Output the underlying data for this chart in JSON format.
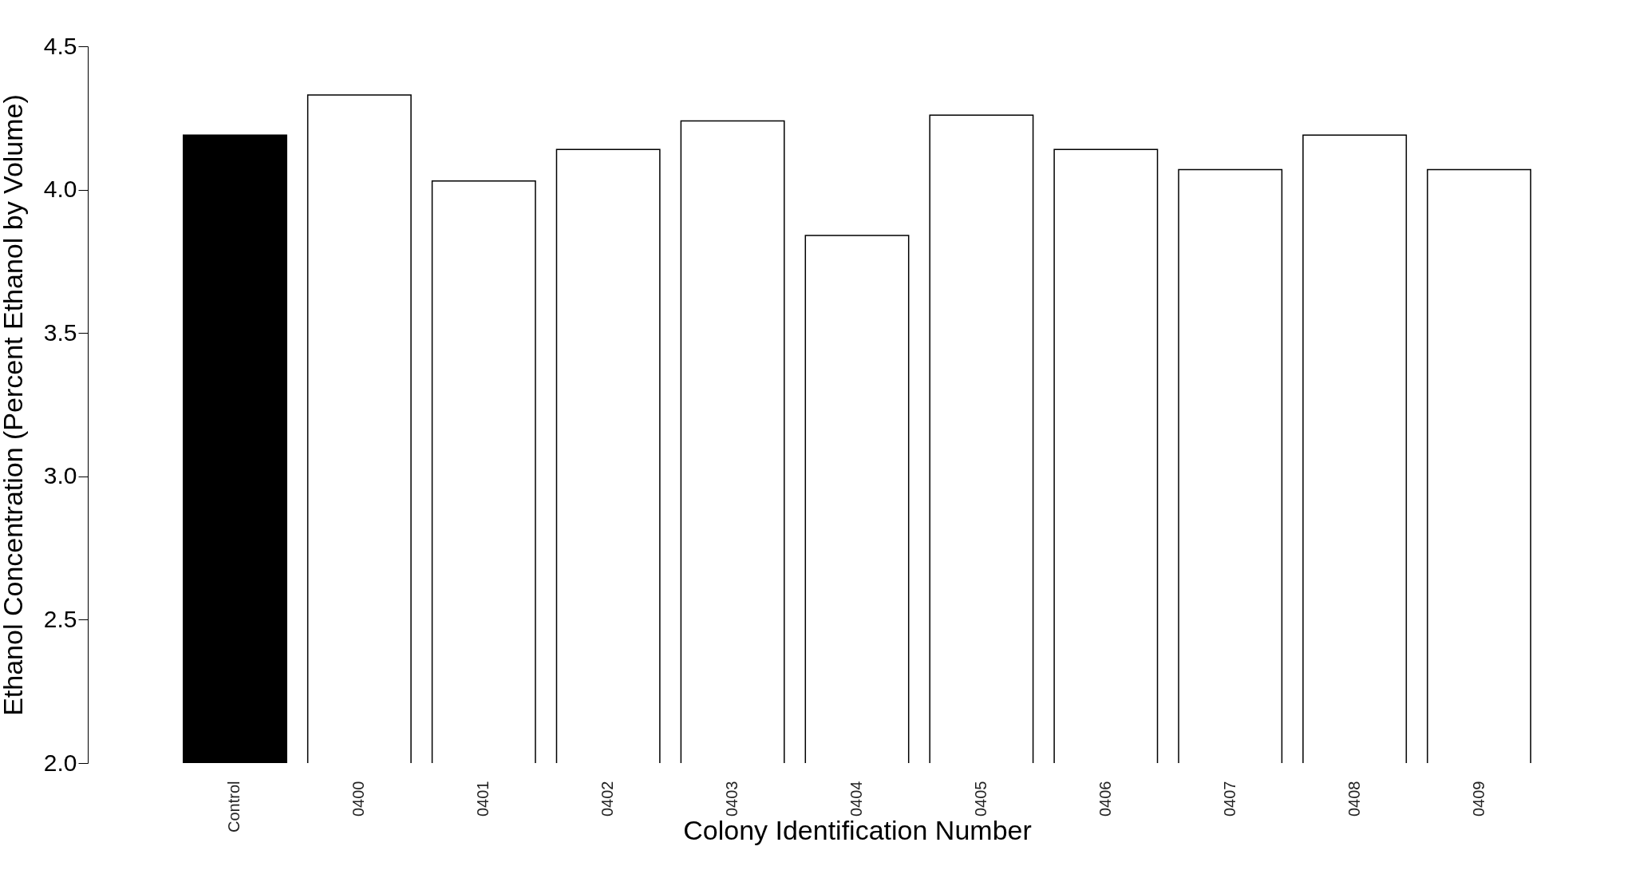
{
  "chart_data": {
    "type": "bar",
    "xlabel": "Colony Identification Number",
    "ylabel": "Ethanol Concentration (Percent Ethanol by Volume)",
    "categories": [
      "Control",
      "0400",
      "0401",
      "0402",
      "0403",
      "0404",
      "0405",
      "0406",
      "0407",
      "0408",
      "0409"
    ],
    "values": [
      4.19,
      4.33,
      4.03,
      4.14,
      4.24,
      3.84,
      4.26,
      4.14,
      4.07,
      4.19,
      4.07
    ],
    "colors": [
      "#000000",
      "#ffffff",
      "#ffffff",
      "#ffffff",
      "#ffffff",
      "#ffffff",
      "#ffffff",
      "#ffffff",
      "#ffffff",
      "#ffffff",
      "#ffffff"
    ],
    "ylim": [
      2,
      4.5
    ],
    "yticks": [
      {
        "value": 2,
        "label": "2.0"
      },
      {
        "value": 2.5,
        "label": "2.5"
      },
      {
        "value": 3,
        "label": "3.0"
      },
      {
        "value": 3.5,
        "label": "3.5"
      },
      {
        "value": 4,
        "label": "4.0"
      },
      {
        "value": 4.5,
        "label": "4.5"
      }
    ],
    "grid": false
  }
}
